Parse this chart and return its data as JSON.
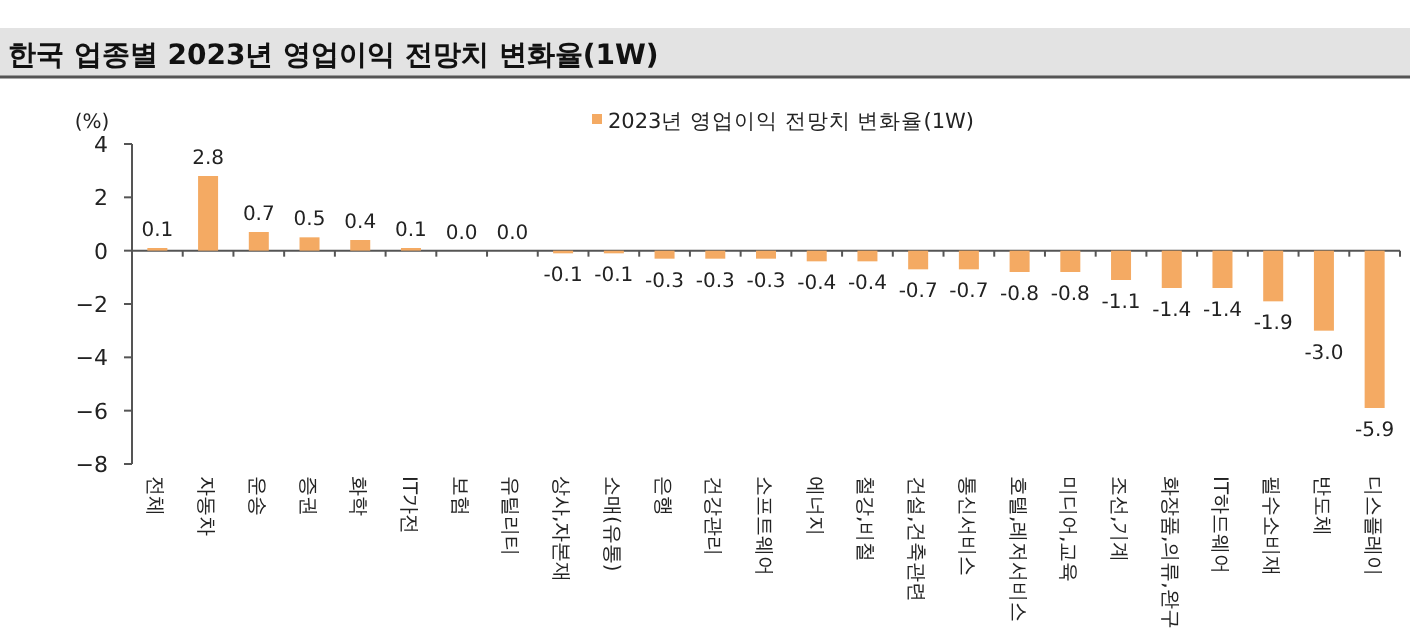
{
  "chart_data": {
    "type": "bar",
    "title": "한국 업종별 2023년 영업이익 전망치 변화율(1W)",
    "ylabel": "(%)",
    "categories": [
      "전체",
      "자동차",
      "운송",
      "증권",
      "화학",
      "IT가전",
      "보험",
      "유틸리티",
      "상사,자본재",
      "소매(유통)",
      "은행",
      "건강관리",
      "소프트웨어",
      "에너지",
      "철강,비철",
      "건설,건축관련",
      "통신서비스",
      "호텔,레저서비스",
      "미디어,교육",
      "조선,기계",
      "화장품,의류,완구",
      "IT하드웨어",
      "필수소비재",
      "반도체",
      "디스플레이"
    ],
    "series": [
      {
        "name": "2023년 영업이익 전망치 변화율(1W)",
        "color": "#f4aa63",
        "values": [
          0.1,
          2.8,
          0.7,
          0.5,
          0.4,
          0.1,
          0.0,
          0.0,
          -0.1,
          -0.1,
          -0.3,
          -0.3,
          -0.3,
          -0.4,
          -0.4,
          -0.7,
          -0.7,
          -0.8,
          -0.8,
          -1.1,
          -1.4,
          -1.4,
          -1.9,
          -3.0,
          -5.9
        ],
        "value_labels": [
          "0.1",
          "2.8",
          "0.7",
          "0.5",
          "0.4",
          "0.1",
          "0.0",
          "0.0",
          "-0.1",
          "-0.1",
          "-0.3",
          "-0.3",
          "-0.3",
          "-0.4",
          "-0.4",
          "-0.7",
          "-0.7",
          "-0.8",
          "-0.8",
          "-1.1",
          "-1.4",
          "-1.4",
          "-1.9",
          "-3.0",
          "-5.9"
        ]
      }
    ],
    "ylim": [
      -8,
      4
    ],
    "yticks": [
      -8,
      -6,
      -4,
      -2,
      0,
      2,
      4
    ],
    "legend": "top"
  }
}
